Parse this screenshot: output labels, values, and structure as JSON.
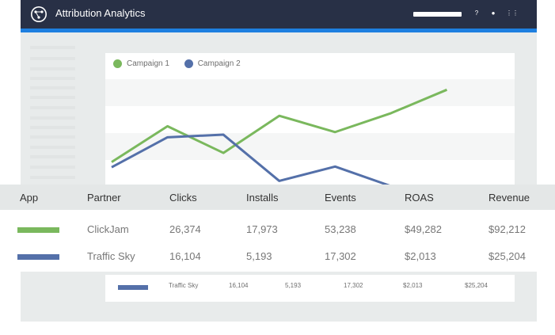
{
  "app": {
    "title": "Attribution Analytics"
  },
  "topbar_icons": [
    "question-icon",
    "user-icon",
    "grid-icon"
  ],
  "topbar_glyphs": {
    "help": "?",
    "user": "●",
    "grid": "⋮⋮"
  },
  "colors": {
    "topbar": "#283046",
    "accent": "#1e7fe0",
    "campaign1": "#7ab85d",
    "campaign2": "#5470a9"
  },
  "legend": [
    {
      "label": "Campaign 1",
      "color": "#7ab85d"
    },
    {
      "label": "Campaign 2",
      "color": "#5470a9"
    }
  ],
  "chart_data": {
    "type": "line",
    "x": [
      1,
      2,
      3,
      4,
      5,
      6,
      7,
      8
    ],
    "series": [
      {
        "name": "Campaign 1",
        "values": [
          3.7,
          9.2,
          5.1,
          10.8,
          8.3,
          11.2,
          14.8,
          null
        ]
      },
      {
        "name": "Campaign 2",
        "values": [
          2.9,
          7.5,
          7.9,
          0.8,
          3.0,
          0,
          null,
          null
        ]
      }
    ],
    "ylim": [
      0,
      18
    ],
    "grid": true
  },
  "table": {
    "headers": [
      "App",
      "Partner",
      "Clicks",
      "Installs",
      "Events",
      "ROAS",
      "Revenue"
    ],
    "rows": [
      {
        "color": "#7ab85d",
        "partner": "ClickJam",
        "clicks": "26,374",
        "installs": "17,973",
        "events": "53,238",
        "roas": "$49,282",
        "revenue": "$92,212"
      },
      {
        "color": "#5470a9",
        "partner": "Traffic Sky",
        "clicks": "16,104",
        "installs": "5,193",
        "events": "17,302",
        "roas": "$2,013",
        "revenue": "$25,204"
      }
    ]
  },
  "sub_row": {
    "color": "#5470a9",
    "partner": "Traffic Sky",
    "clicks": "16,104",
    "installs": "5,193",
    "events": "17,302",
    "roas": "$2,013",
    "revenue": "$25,204"
  }
}
